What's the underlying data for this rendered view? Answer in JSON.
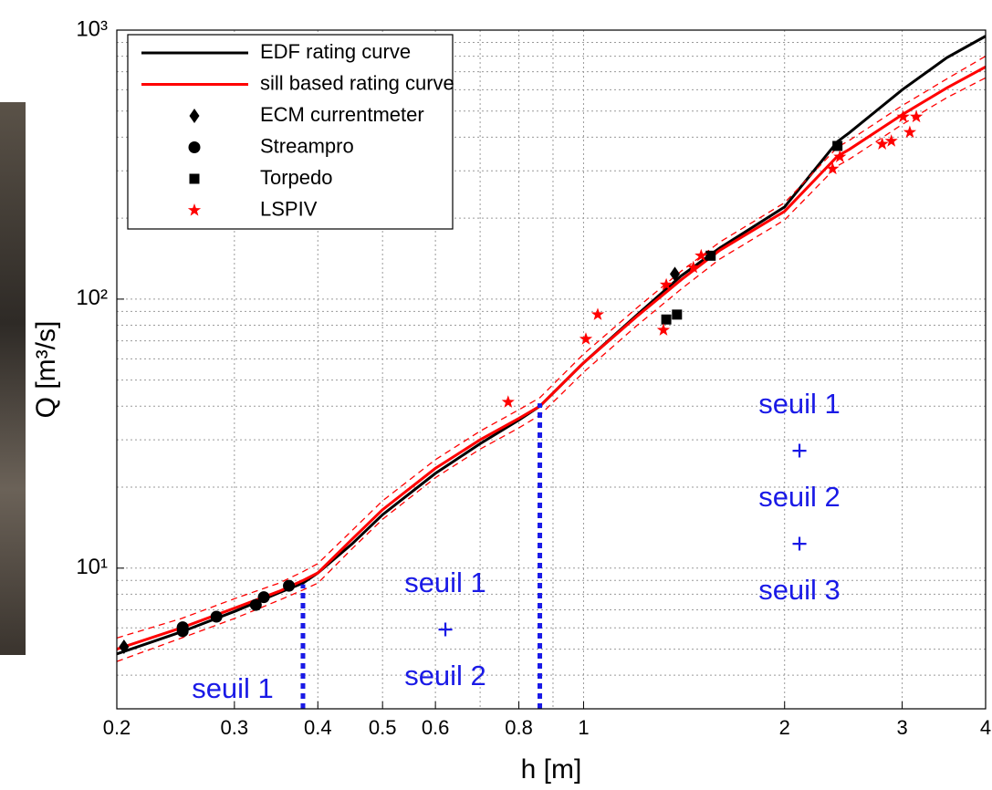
{
  "chart_data": {
    "type": "line",
    "xlabel": "h [m]",
    "ylabel": "Q [m³/s]",
    "xscale": "log",
    "yscale": "log",
    "xlim": [
      0.2,
      4
    ],
    "ylim": [
      3,
      1000
    ],
    "xticks": [
      0.2,
      0.3,
      0.4,
      0.5,
      0.6,
      0.8,
      1,
      2,
      3,
      4
    ],
    "yticks": [
      {
        "value": 10,
        "label": "10¹"
      },
      {
        "value": 100,
        "label": "10²"
      },
      {
        "value": 1000,
        "label": "10³"
      }
    ],
    "grid": true,
    "minor_grid": true,
    "legend": "upper left",
    "series": [
      {
        "name": "EDF rating curve",
        "color": "#000000",
        "x": [
          0.2,
          0.25,
          0.3,
          0.35,
          0.38,
          0.4,
          0.45,
          0.5,
          0.6,
          0.7,
          0.8,
          0.86,
          1,
          1.2,
          1.4,
          1.6,
          2,
          2.4,
          2.5,
          3,
          3.5,
          4
        ],
        "values": [
          4.8,
          5.8,
          6.9,
          8.1,
          8.8,
          9.6,
          12.3,
          15.8,
          22.5,
          29,
          35.5,
          40,
          58,
          87,
          122,
          155,
          220,
          385,
          415,
          600,
          790,
          950
        ]
      },
      {
        "name": "sill based rating curve",
        "color": "#ff0000",
        "x": [
          0.2,
          0.25,
          0.3,
          0.35,
          0.38,
          0.4,
          0.45,
          0.5,
          0.6,
          0.7,
          0.8,
          0.86,
          1,
          1.2,
          1.4,
          1.6,
          2,
          2.4,
          2.5,
          3,
          3.5,
          4
        ],
        "values": [
          5.0,
          6.0,
          7.1,
          8.2,
          9.0,
          9.6,
          12.8,
          16.5,
          23.5,
          30,
          36,
          40,
          58,
          86,
          118,
          152,
          212,
          340,
          360,
          485,
          610,
          730
        ],
        "upper": [
          5.5,
          6.5,
          7.7,
          8.8,
          9.7,
          10.4,
          13.8,
          17.8,
          25.3,
          32.3,
          38.8,
          43,
          62.5,
          92.5,
          127,
          163,
          228,
          367,
          389,
          524,
          659,
          800
        ],
        "lower": [
          4.5,
          5.5,
          6.5,
          7.6,
          8.3,
          8.8,
          11.8,
          15.2,
          21.7,
          27.7,
          33.2,
          37,
          53.5,
          79.5,
          109,
          141,
          197,
          313,
          331,
          446,
          561,
          665
        ]
      },
      {
        "name": "ECM currentmeter",
        "color": "#000000",
        "marker": "diamond",
        "x": [
          0.205,
          1.37
        ],
        "values": [
          5.1,
          124
        ]
      },
      {
        "name": "Streampro",
        "color": "#000000",
        "marker": "circle",
        "x": [
          0.251,
          0.251,
          0.282,
          0.323,
          0.332,
          0.362
        ],
        "values": [
          6.03,
          5.83,
          6.6,
          7.3,
          7.8,
          8.6
        ]
      },
      {
        "name": "Torpedo",
        "color": "#000000",
        "marker": "square",
        "x": [
          1.33,
          1.38,
          1.55,
          2.4
        ],
        "values": [
          84,
          87.6,
          145,
          371
        ]
      },
      {
        "name": "LSPIV",
        "color": "#ff0000",
        "marker": "star",
        "x": [
          0.771,
          1.008,
          1.05,
          1.317,
          1.33,
          1.46,
          1.5,
          2.36,
          2.42,
          2.8,
          2.89,
          3.01,
          3.08,
          3.15
        ],
        "values": [
          41.4,
          71,
          87.6,
          76.7,
          113,
          131,
          145,
          305,
          338,
          377,
          387,
          476,
          417,
          476
        ]
      }
    ],
    "breakpoints": [
      {
        "x": 0.38,
        "y": 8.7
      },
      {
        "x": 0.86,
        "y": 41
      }
    ],
    "breakpoint_color": "#1a1ae6",
    "annotations": [
      {
        "lines": [
          "seuil 1"
        ],
        "color": "#1a1ae6"
      },
      {
        "lines": [
          "seuil 1",
          "+",
          "seuil 2"
        ],
        "color": "#1a1ae6"
      },
      {
        "lines": [
          "seuil 1",
          "+",
          "seuil 2",
          "+",
          "seuil 3"
        ],
        "color": "#1a1ae6"
      }
    ]
  }
}
